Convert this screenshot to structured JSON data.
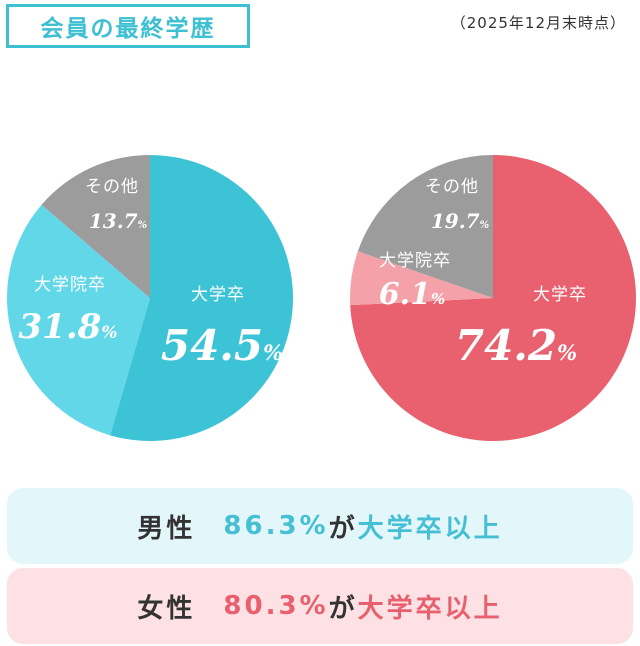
{
  "header": {
    "title": "会員の最終学歴",
    "as_of": "（2025年12月末時点）"
  },
  "chart_data": [
    {
      "type": "pie",
      "name": "男性",
      "categories": [
        "大学卒",
        "大学院卒",
        "その他"
      ],
      "values": [
        54.5,
        31.8,
        13.7
      ],
      "colors": [
        "#3cc4d6",
        "#62d7e8",
        "#9c9c9c"
      ],
      "start": "12 o'clock",
      "direction": "clockwise"
    },
    {
      "type": "pie",
      "name": "女性",
      "categories": [
        "大学卒",
        "大学院卒",
        "その他"
      ],
      "values": [
        74.2,
        6.1,
        19.7
      ],
      "colors": [
        "#e9616f",
        "#f5a1a9",
        "#9c9c9c"
      ],
      "start": "12 o'clock",
      "direction": "clockwise"
    }
  ],
  "summary": [
    {
      "gender": "男性",
      "pct": "86.3%",
      "ga": "が",
      "tail": "大学卒以上",
      "color": "#45bfd3",
      "bg": "#e3f7fb"
    },
    {
      "gender": "女性",
      "pct": "80.3%",
      "ga": "が",
      "tail": "大学卒以上",
      "color": "#e8606e",
      "bg": "#fde1e4"
    }
  ]
}
